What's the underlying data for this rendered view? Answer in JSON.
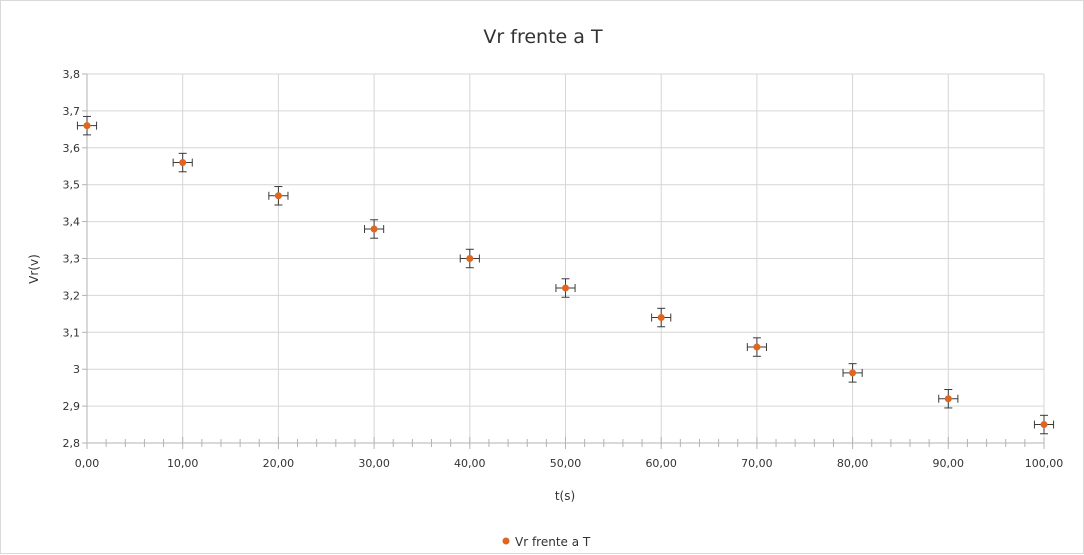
{
  "chart_data": {
    "type": "scatter",
    "title": "Vr frente a T",
    "xlabel": "t(s)",
    "ylabel": "Vr(v)",
    "xlim": [
      0,
      100
    ],
    "ylim": [
      2.8,
      3.8
    ],
    "x_ticks": [
      "0,00",
      "10,00",
      "20,00",
      "30,00",
      "40,00",
      "50,00",
      "60,00",
      "70,00",
      "80,00",
      "90,00",
      "100,00"
    ],
    "y_ticks": [
      "2,8",
      "2,9",
      "3",
      "3,1",
      "3,2",
      "3,3",
      "3,4",
      "3,5",
      "3,6",
      "3,7",
      "3,8"
    ],
    "grid": true,
    "legend_position": "bottom",
    "series": [
      {
        "name": "Vr frente a T",
        "color": "#e0661f",
        "x": [
          0,
          10,
          20,
          30,
          40,
          50,
          60,
          70,
          80,
          90,
          100
        ],
        "y": [
          3.66,
          3.56,
          3.47,
          3.38,
          3.3,
          3.22,
          3.14,
          3.06,
          2.99,
          2.92,
          2.85
        ],
        "x_error": 1.0,
        "y_error": 0.025
      }
    ]
  }
}
